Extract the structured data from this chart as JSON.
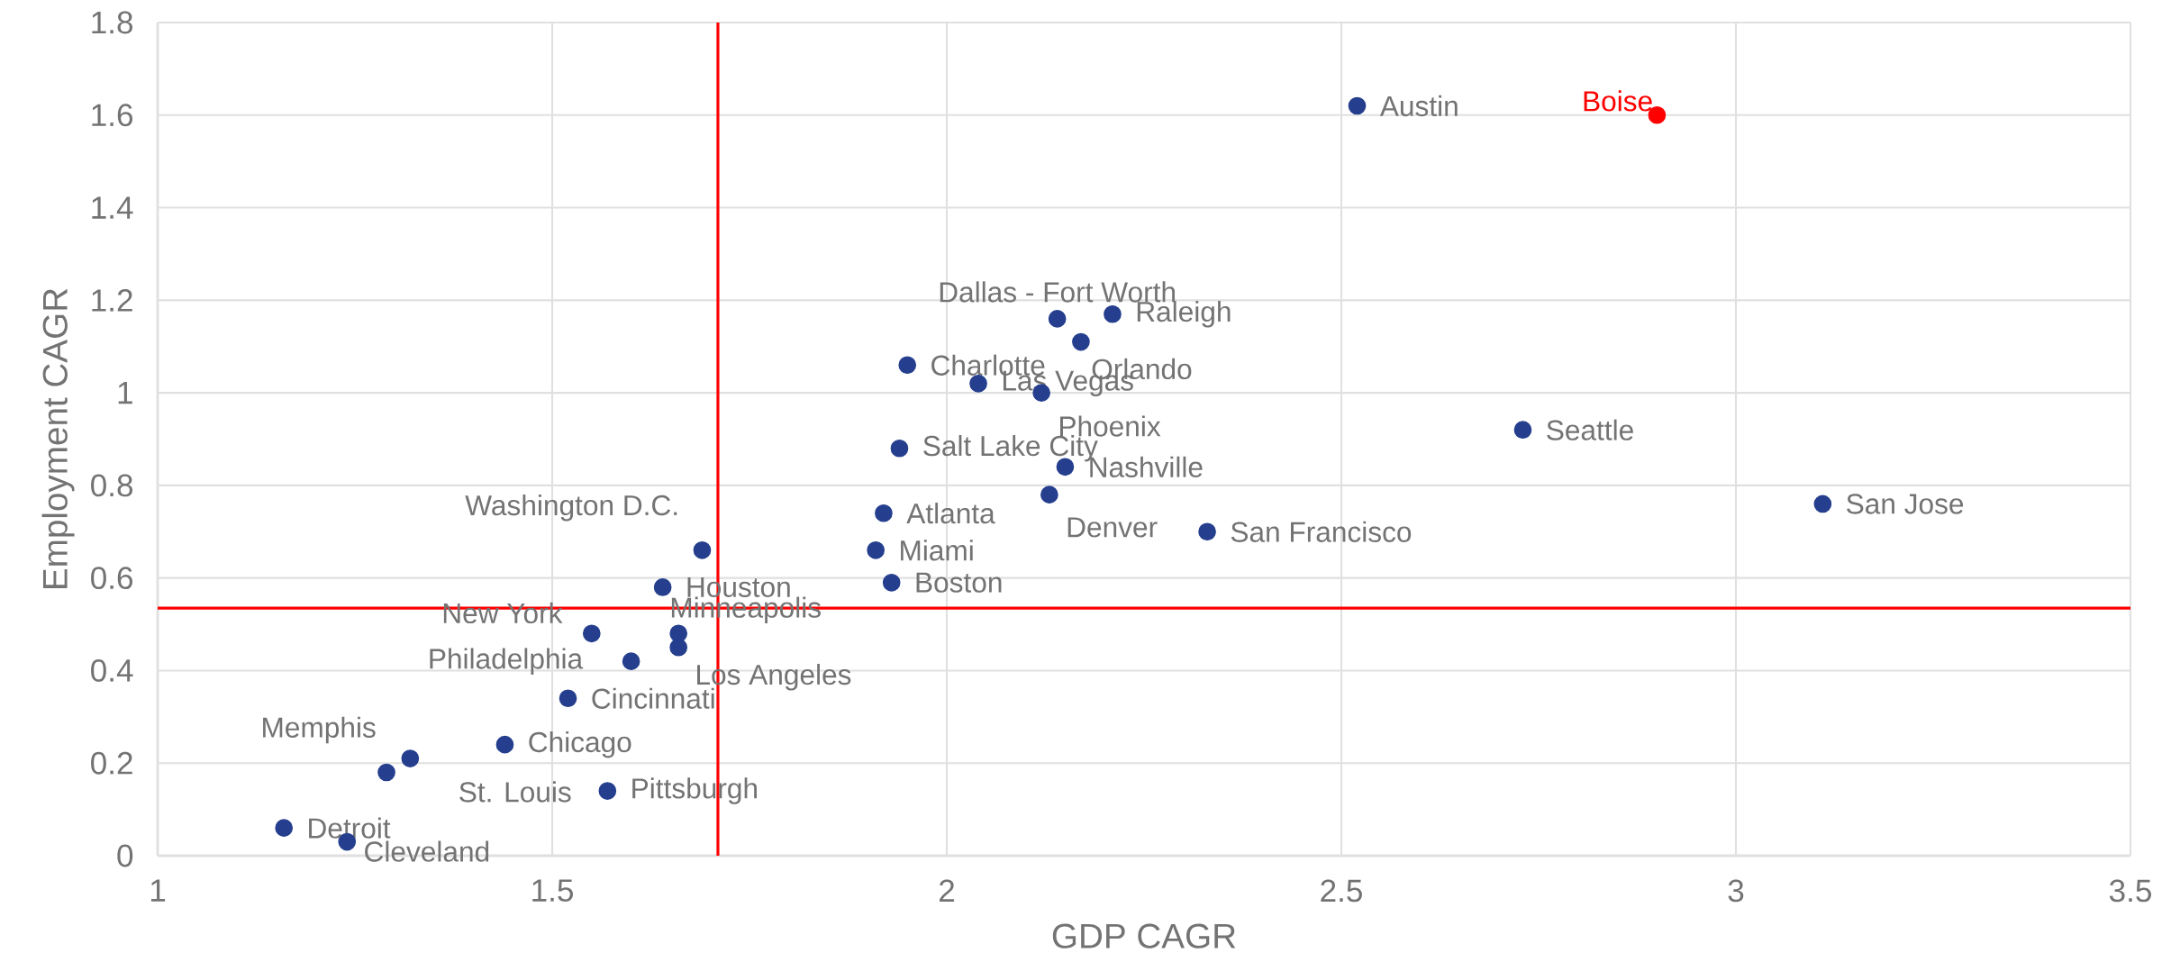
{
  "chart_data": {
    "type": "scatter",
    "xlabel": "GDP CAGR",
    "ylabel": "Employment CAGR",
    "xlim": [
      1,
      3.5
    ],
    "xticks": [
      1,
      1.5,
      2,
      2.5,
      3,
      3.5
    ],
    "ylim": [
      0,
      1.8
    ],
    "yticks": [
      0,
      0.2,
      0.4,
      0.6,
      0.8,
      1,
      1.2,
      1.4,
      1.6,
      1.8
    ],
    "grid": true,
    "marker": "circle",
    "series": [
      {
        "color": "#253f8e",
        "x": [
          2.52,
          2.14,
          2.21,
          2.17,
          1.95,
          2.04,
          2.12,
          2.73,
          1.94,
          2.15,
          3.11,
          2.13,
          1.92,
          2.33,
          1.69,
          1.91,
          1.93,
          1.64,
          1.55,
          1.66,
          1.66,
          1.6,
          1.52,
          1.44,
          1.29,
          1.32,
          1.57,
          1.16,
          1.24
        ],
        "values": [
          1.62,
          1.16,
          1.17,
          1.11,
          1.06,
          1.02,
          1.0,
          0.92,
          0.88,
          0.84,
          0.76,
          0.78,
          0.74,
          0.7,
          0.66,
          0.66,
          0.59,
          0.58,
          0.48,
          0.48,
          0.45,
          0.42,
          0.34,
          0.24,
          0.18,
          0.21,
          0.14,
          0.06,
          0.03
        ]
      },
      {
        "name": "Boise",
        "color": "#ff0000",
        "x": [
          2.9
        ],
        "values": [
          1.6
        ]
      }
    ],
    "ref_lines": [
      {
        "axis": "x",
        "value": 1.71,
        "color": "#ff0000"
      },
      {
        "axis": "y",
        "value": 0.535,
        "color": "#ff0000"
      }
    ],
    "annotations": [
      {
        "text": "Austin",
        "x": 2.52,
        "y": 1.62
      },
      {
        "text": "Dallas - Fort Worth",
        "x": 2.14,
        "y": 1.16
      },
      {
        "text": "Raleigh",
        "x": 2.21,
        "y": 1.17
      },
      {
        "text": "Orlando",
        "x": 2.17,
        "y": 1.11
      },
      {
        "text": "Charlotte",
        "x": 1.95,
        "y": 1.06
      },
      {
        "text": "Las Vegas",
        "x": 2.04,
        "y": 1.02
      },
      {
        "text": "Phoenix",
        "x": 2.12,
        "y": 1.0
      },
      {
        "text": "Seattle",
        "x": 2.73,
        "y": 0.92
      },
      {
        "text": "Salt Lake City",
        "x": 1.94,
        "y": 0.88
      },
      {
        "text": "Nashville",
        "x": 2.15,
        "y": 0.84
      },
      {
        "text": "San Jose",
        "x": 3.11,
        "y": 0.76
      },
      {
        "text": "Denver",
        "x": 2.13,
        "y": 0.78
      },
      {
        "text": "Atlanta",
        "x": 1.92,
        "y": 0.74
      },
      {
        "text": "San Francisco",
        "x": 2.33,
        "y": 0.7
      },
      {
        "text": "Washington D.C.",
        "x": 1.69,
        "y": 0.66
      },
      {
        "text": "Miami",
        "x": 1.91,
        "y": 0.66
      },
      {
        "text": "Boston",
        "x": 1.93,
        "y": 0.59
      },
      {
        "text": "Houston",
        "x": 1.64,
        "y": 0.58
      },
      {
        "text": "New York",
        "x": 1.55,
        "y": 0.48
      },
      {
        "text": "Minneapolis",
        "x": 1.66,
        "y": 0.48
      },
      {
        "text": "Los Angeles",
        "x": 1.66,
        "y": 0.45
      },
      {
        "text": "Philadelphia",
        "x": 1.6,
        "y": 0.42
      },
      {
        "text": "Cincinnati",
        "x": 1.52,
        "y": 0.34
      },
      {
        "text": "Chicago",
        "x": 1.44,
        "y": 0.24
      },
      {
        "text": "Memphis",
        "x": 1.29,
        "y": 0.18
      },
      {
        "text": "St. Louis",
        "x": 1.32,
        "y": 0.21
      },
      {
        "text": "Pittsburgh",
        "x": 1.57,
        "y": 0.14
      },
      {
        "text": "Detroit",
        "x": 1.16,
        "y": 0.06
      },
      {
        "text": "Cleveland",
        "x": 1.24,
        "y": 0.03
      }
    ]
  }
}
